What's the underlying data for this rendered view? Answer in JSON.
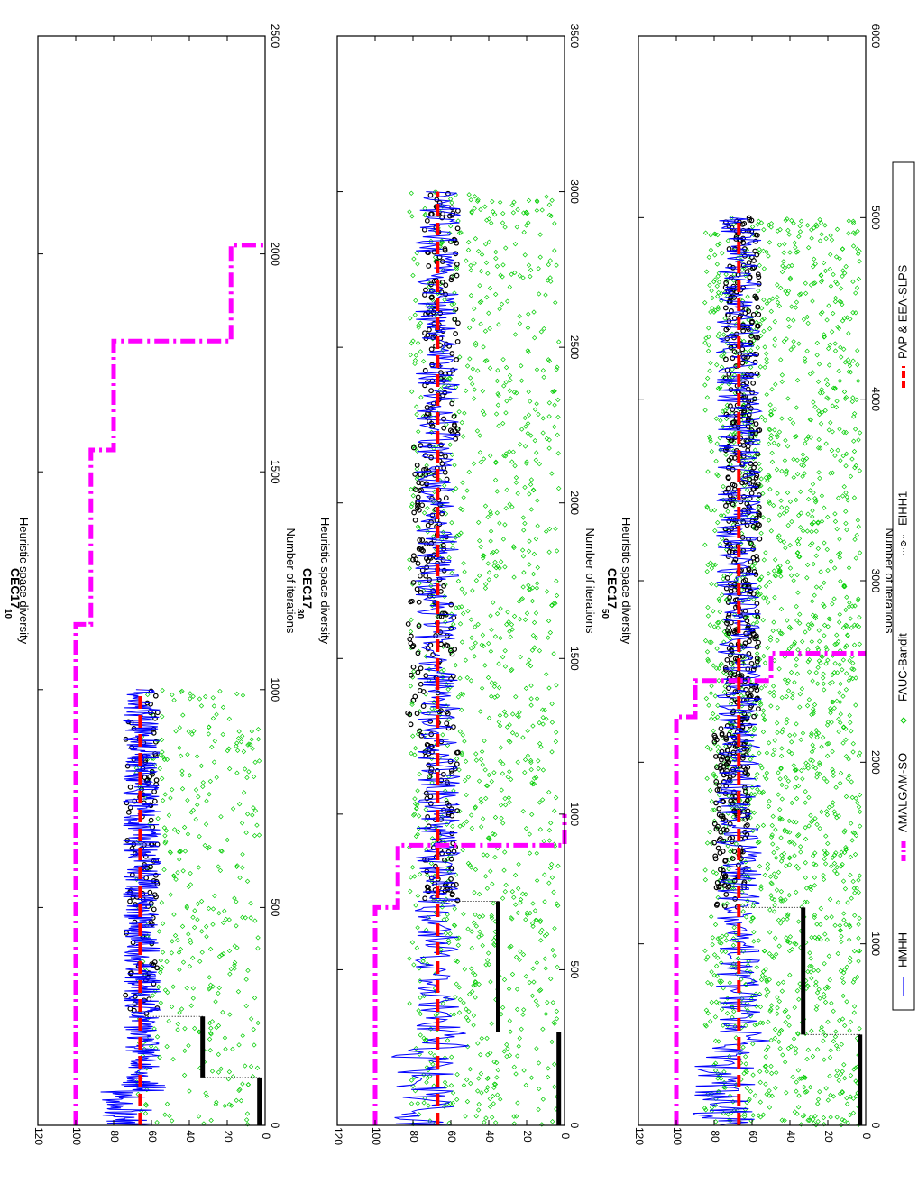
{
  "figure": {
    "orientation": "rotated 90 degrees clockwise (x axis runs bottom to top)",
    "legend_position": "right",
    "ylabel": "Heuristic space diversity",
    "xlabel": "Number of iterations",
    "legend": [
      {
        "key": "hmhh",
        "label": "HMHH",
        "color": "#0000ff",
        "style": "solid"
      },
      {
        "key": "amalgam",
        "label": "AMALGAM-SO",
        "color": "#ff00ff",
        "style": "dash-dot"
      },
      {
        "key": "fauc",
        "label": "FAUC-Bandit",
        "color": "#00cc00",
        "style": "diamond-markers"
      },
      {
        "key": "eihh",
        "label": "EIHH1",
        "color": "#000000",
        "style": "dotted-circles"
      },
      {
        "key": "pap",
        "label": "PAP & EEA-SLPS",
        "color": "#ff0000",
        "style": "dashed"
      }
    ]
  },
  "chart_data": [
    {
      "type": "line",
      "title_base": "CEC17",
      "title_sub": "10",
      "xlabel": "Number of iterations",
      "ylabel": "Heuristic space diversity",
      "xlim": [
        0,
        2500
      ],
      "ylim": [
        0,
        120
      ],
      "xticks": [
        0,
        500,
        1000,
        1500,
        2000,
        2500
      ],
      "yticks": [
        0,
        20,
        40,
        60,
        80,
        100,
        120
      ],
      "grid": false,
      "series": [
        {
          "name": "HMHH",
          "type": "noisy_line",
          "x_end": 1000,
          "level": 65,
          "spread": 10
        },
        {
          "name": "AMALGAM-SO",
          "type": "step",
          "x": [
            0,
            1150,
            1550,
            1800,
            2020
          ],
          "y": [
            100,
            92,
            80,
            18,
            0
          ]
        },
        {
          "name": "FAUC-Bandit",
          "type": "scatter_band",
          "x_end": 1000,
          "y_min": 3,
          "y_max": 68
        },
        {
          "name": "EIHH1",
          "type": "segments",
          "segments": [
            [
              0,
              110,
              3
            ],
            [
              110,
              250,
              33
            ],
            [
              250,
              1000,
              65
            ]
          ]
        },
        {
          "name": "PAP & EEA-SLPS",
          "type": "constant",
          "x": [
            0,
            1000
          ],
          "y": 66
        }
      ]
    },
    {
      "type": "line",
      "title_base": "CEC17",
      "title_sub": "30",
      "xlabel": "Number of iterations",
      "ylabel": "Heuristic space diversity",
      "xlim": [
        0,
        3500
      ],
      "ylim": [
        0,
        120
      ],
      "xticks": [
        0,
        500,
        1000,
        1500,
        2000,
        2500,
        3000,
        3500
      ],
      "yticks": [
        0,
        20,
        40,
        60,
        80,
        100,
        120
      ],
      "grid": false,
      "series": [
        {
          "name": "HMHH",
          "type": "noisy_line",
          "x_end": 3000,
          "level": 67,
          "spread": 12
        },
        {
          "name": "AMALGAM-SO",
          "type": "step",
          "x": [
            0,
            700,
            900,
            1000
          ],
          "y": [
            100,
            88,
            0,
            0
          ]
        },
        {
          "name": "FAUC-Bandit",
          "type": "scatter_band",
          "x_end": 3000,
          "y_min": 3,
          "y_max": 82
        },
        {
          "name": "EIHH1",
          "type": "segments",
          "segments": [
            [
              0,
              300,
              3
            ],
            [
              300,
              720,
              35
            ],
            [
              720,
              3000,
              65
            ]
          ]
        },
        {
          "name": "PAP & EEA-SLPS",
          "type": "constant",
          "x": [
            0,
            3000
          ],
          "y": 67
        }
      ]
    },
    {
      "type": "line",
      "title_base": "CEC17",
      "title_sub": "50",
      "xlabel": "Number of iterations",
      "ylabel": "Heuristic space diversity",
      "xlim": [
        0,
        6000
      ],
      "ylim": [
        0,
        120
      ],
      "xticks": [
        0,
        1000,
        2000,
        3000,
        4000,
        5000,
        6000
      ],
      "yticks": [
        0,
        20,
        40,
        60,
        80,
        100,
        120
      ],
      "grid": false,
      "series": [
        {
          "name": "HMHH",
          "type": "noisy_line",
          "x_end": 5000,
          "level": 67,
          "spread": 12
        },
        {
          "name": "AMALGAM-SO",
          "type": "step",
          "x": [
            0,
            2250,
            2450,
            2600
          ],
          "y": [
            100,
            90,
            50,
            0
          ]
        },
        {
          "name": "FAUC-Bandit",
          "type": "scatter_band",
          "x_end": 5000,
          "y_min": 3,
          "y_max": 85
        },
        {
          "name": "EIHH1",
          "type": "segments",
          "segments": [
            [
              0,
              500,
              3
            ],
            [
              500,
              1200,
              33
            ],
            [
              1200,
              5000,
              65
            ]
          ]
        },
        {
          "name": "PAP & EEA-SLPS",
          "type": "constant",
          "x": [
            0,
            5000
          ],
          "y": 67
        }
      ]
    }
  ]
}
